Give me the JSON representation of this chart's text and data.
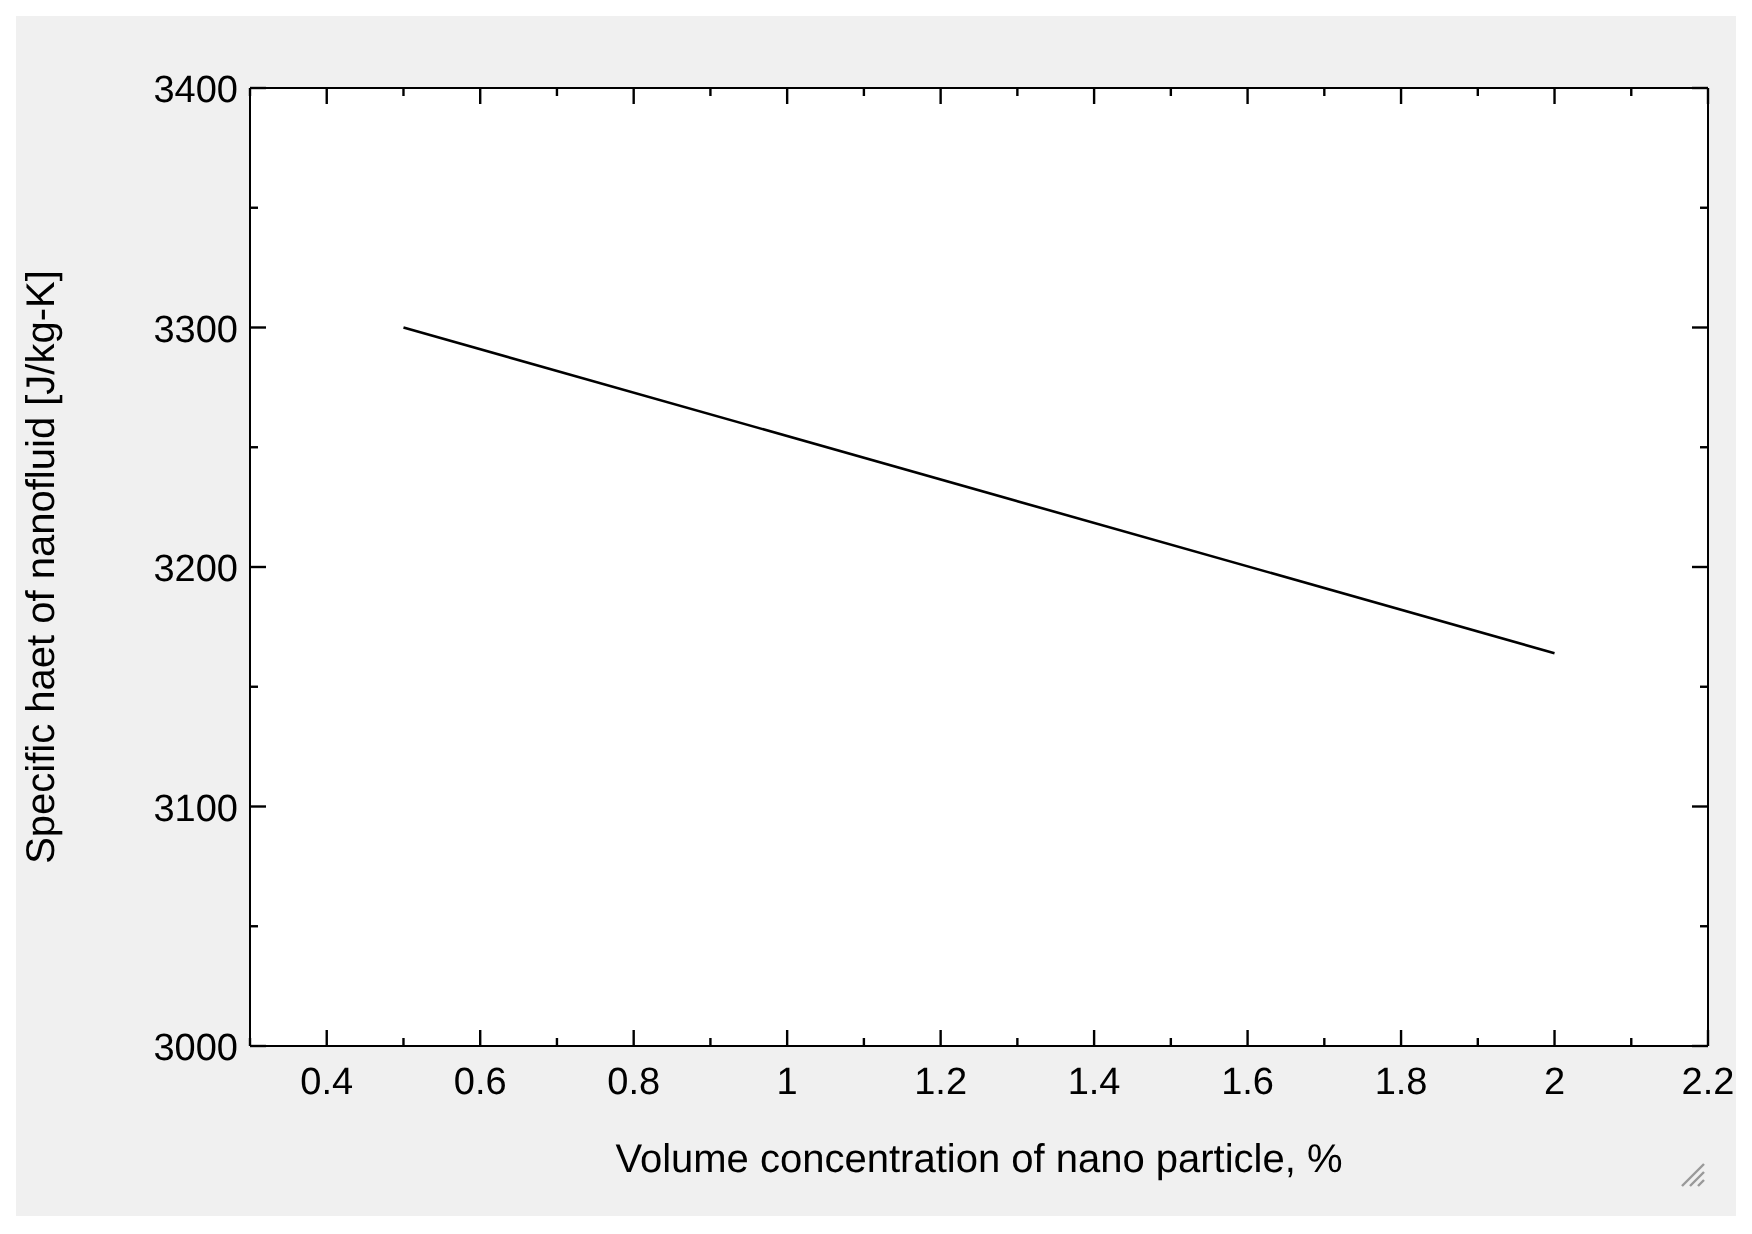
{
  "chart_data": {
    "type": "line",
    "xlabel": "Volume concentration of nano particle, %",
    "ylabel": "Specific haet of nanofluid [J/kg-K]",
    "x": [
      0.5,
      2
    ],
    "series": [
      {
        "color": "#000000",
        "values": [
          3300,
          3164
        ]
      }
    ],
    "xlim": [
      0.3,
      2.2
    ],
    "xticks": [
      {
        "value": 0.3,
        "label": null
      },
      0.4,
      {
        "value": 0.5,
        "label": null
      },
      0.6,
      {
        "value": 0.7,
        "label": null
      },
      0.8,
      {
        "value": 0.9,
        "label": null
      },
      1,
      {
        "value": 1.1,
        "label": null
      },
      1.2,
      {
        "value": 1.3,
        "label": null
      },
      1.4,
      {
        "value": 1.5,
        "label": null
      },
      1.6,
      {
        "value": 1.7,
        "label": null
      },
      1.8,
      {
        "value": 1.9,
        "label": null
      },
      2,
      {
        "value": 2.1,
        "label": null
      },
      2.2
    ],
    "ylim": [
      3000,
      3400
    ],
    "yticks": [
      3000,
      {
        "value": 3050,
        "label": null
      },
      3100,
      {
        "value": 3150,
        "label": null
      },
      3200,
      {
        "value": 3250,
        "label": null
      },
      3300,
      {
        "value": 3350,
        "label": null
      },
      3400
    ],
    "grid": false,
    "marker": "none",
    "line_style": "solid"
  }
}
